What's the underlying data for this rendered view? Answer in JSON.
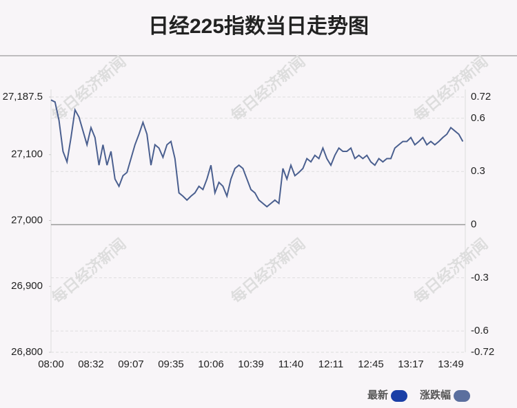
{
  "chart_data": {
    "type": "line",
    "title": "日经225指数当日走势图",
    "watermark": "每日经济新闻",
    "categories": [
      "08:00",
      null,
      null,
      null,
      null,
      null,
      null,
      null,
      null,
      null,
      "08:32",
      null,
      null,
      null,
      null,
      null,
      null,
      null,
      null,
      null,
      "09:07",
      null,
      null,
      null,
      null,
      null,
      null,
      null,
      null,
      null,
      "09:35",
      null,
      null,
      null,
      null,
      null,
      null,
      null,
      null,
      null,
      "10:06",
      null,
      null,
      null,
      null,
      null,
      null,
      null,
      null,
      null,
      "10:39",
      null,
      null,
      null,
      null,
      null,
      null,
      null,
      null,
      null,
      "11:40",
      null,
      null,
      null,
      null,
      null,
      null,
      null,
      null,
      null,
      "12:11",
      null,
      null,
      null,
      null,
      null,
      null,
      null,
      null,
      null,
      "12:45",
      null,
      null,
      null,
      null,
      null,
      null,
      null,
      null,
      null,
      "13:17",
      null,
      null,
      null,
      null,
      null,
      null,
      null,
      null,
      null,
      "13:49",
      null,
      null,
      null
    ],
    "series": [
      {
        "name": "最新",
        "color": "#4a5f8f",
        "values": [
          27183,
          27180,
          27152,
          27105,
          27089,
          27126,
          27168,
          27157,
          27136,
          27115,
          27141,
          27126,
          27084,
          27115,
          27084,
          27105,
          27063,
          27052,
          27068,
          27073,
          27094,
          27115,
          27131,
          27149,
          27131,
          27084,
          27115,
          27110,
          27096,
          27115,
          27120,
          27094,
          27042,
          27037,
          27031,
          27037,
          27042,
          27052,
          27047,
          27063,
          27084,
          27042,
          27058,
          27052,
          27037,
          27063,
          27079,
          27084,
          27079,
          27063,
          27047,
          27042,
          27031,
          27026,
          27021,
          27026,
          27031,
          27026,
          27079,
          27063,
          27084,
          27068,
          27073,
          27079,
          27094,
          27089,
          27099,
          27094,
          27110,
          27094,
          27084,
          27099,
          27110,
          27105,
          27105,
          27110,
          27094,
          27099,
          27094,
          27099,
          27089,
          27084,
          27094,
          27089,
          27094,
          27094,
          27110,
          27115,
          27120,
          27120,
          27126,
          27115,
          27120,
          27126,
          27115,
          27120,
          27115,
          27120,
          27126,
          27131,
          27141,
          27136,
          27131,
          27120
        ]
      }
    ],
    "legend": [
      {
        "name": "最新",
        "color": "#1a3fa6"
      },
      {
        "name": "涨跌幅",
        "color": "#5b6f9e"
      }
    ],
    "ylim": [
      26800,
      27187.5
    ],
    "yticks": [
      {
        "value": 26800,
        "label": "26,800"
      },
      {
        "value": 26900,
        "label": "26,900"
      },
      {
        "value": 27000,
        "label": "27,000"
      },
      {
        "value": 27100,
        "label": "27,100"
      },
      {
        "value": 27187.5,
        "label": "27,187.5"
      }
    ],
    "y2lim": [
      -0.72,
      0.72
    ],
    "y2ticks": [
      -0.72,
      -0.6,
      -0.3,
      0,
      0.3,
      0.6,
      0.72
    ]
  }
}
